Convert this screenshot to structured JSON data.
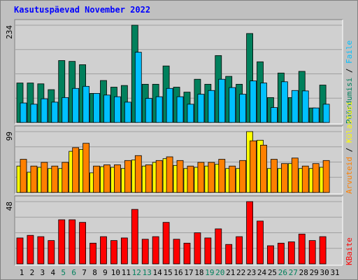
{
  "chart_data": [
    {
      "type": "bar",
      "title": "Kasutuspäevad November 2022",
      "series": [
        {
          "name": "Pöördumisi",
          "color": "#00805c",
          "values": [
            95,
            95,
            93,
            79,
            149,
            147,
            139,
            70,
            101,
            85,
            89,
            234,
            92,
            92,
            136,
            85,
            73,
            104,
            92,
            161,
            111,
            92,
            214,
            146,
            60,
            119,
            60,
            123,
            35,
            90,
            null
          ]
        },
        {
          "name": "Faile",
          "color": "#00c0ff",
          "values": [
            47,
            44,
            57,
            49,
            60,
            82,
            87,
            70,
            66,
            62,
            49,
            169,
            58,
            62,
            82,
            62,
            44,
            68,
            77,
            104,
            84,
            68,
            100,
            95,
            36,
            98,
            77,
            76,
            35,
            44,
            null
          ]
        }
      ],
      "ylim": [
        0,
        234
      ],
      "yticks": [
        234
      ],
      "grid": true
    },
    {
      "type": "bar",
      "series": [
        {
          "name": "Külastusi",
          "color": "#ffff00",
          "values": [
            43,
            33,
            41,
            39,
            39,
            67,
            70,
            32,
            42,
            41,
            39,
            53,
            43,
            49,
            55,
            44,
            39,
            41,
            43,
            46,
            39,
            39,
            99,
            85,
            39,
            39,
            47,
            39,
            39,
            41,
            null
          ]
        },
        {
          "name": "Arvuteid",
          "color": "#ff8000",
          "values": [
            54,
            43,
            49,
            43,
            49,
            73,
            80,
            43,
            45,
            45,
            52,
            60,
            45,
            52,
            58,
            52,
            43,
            49,
            49,
            54,
            43,
            52,
            84,
            77,
            54,
            47,
            56,
            43,
            47,
            52,
            null
          ]
        }
      ],
      "legend_reversed": true,
      "ylim": [
        0,
        99
      ],
      "yticks": [
        99
      ],
      "grid": true
    },
    {
      "type": "bar",
      "categories": [
        "1",
        "2",
        "3",
        "4",
        "5",
        "6",
        "7",
        "8",
        "9",
        "10",
        "11",
        "12",
        "13",
        "14",
        "15",
        "16",
        "17",
        "18",
        "19",
        "20",
        "21",
        "22",
        "23",
        "24",
        "25",
        "26",
        "27",
        "28",
        "29",
        "30",
        "31"
      ],
      "highlight": [
        4,
        5,
        11,
        12,
        18,
        19,
        25,
        26
      ],
      "highlight_color": "#00805c",
      "series": [
        {
          "name": "KBaite",
          "color": "#ff0000",
          "values": [
            20,
            22,
            21,
            18,
            34,
            34,
            32,
            16,
            21,
            18,
            20,
            42,
            19,
            21,
            32,
            19,
            16,
            24,
            20,
            27,
            15,
            21,
            48,
            33,
            14,
            16,
            17,
            23,
            18,
            21,
            null
          ]
        }
      ],
      "ylim": [
        0,
        48
      ],
      "yticks": [
        48
      ],
      "grid": true
    }
  ]
}
